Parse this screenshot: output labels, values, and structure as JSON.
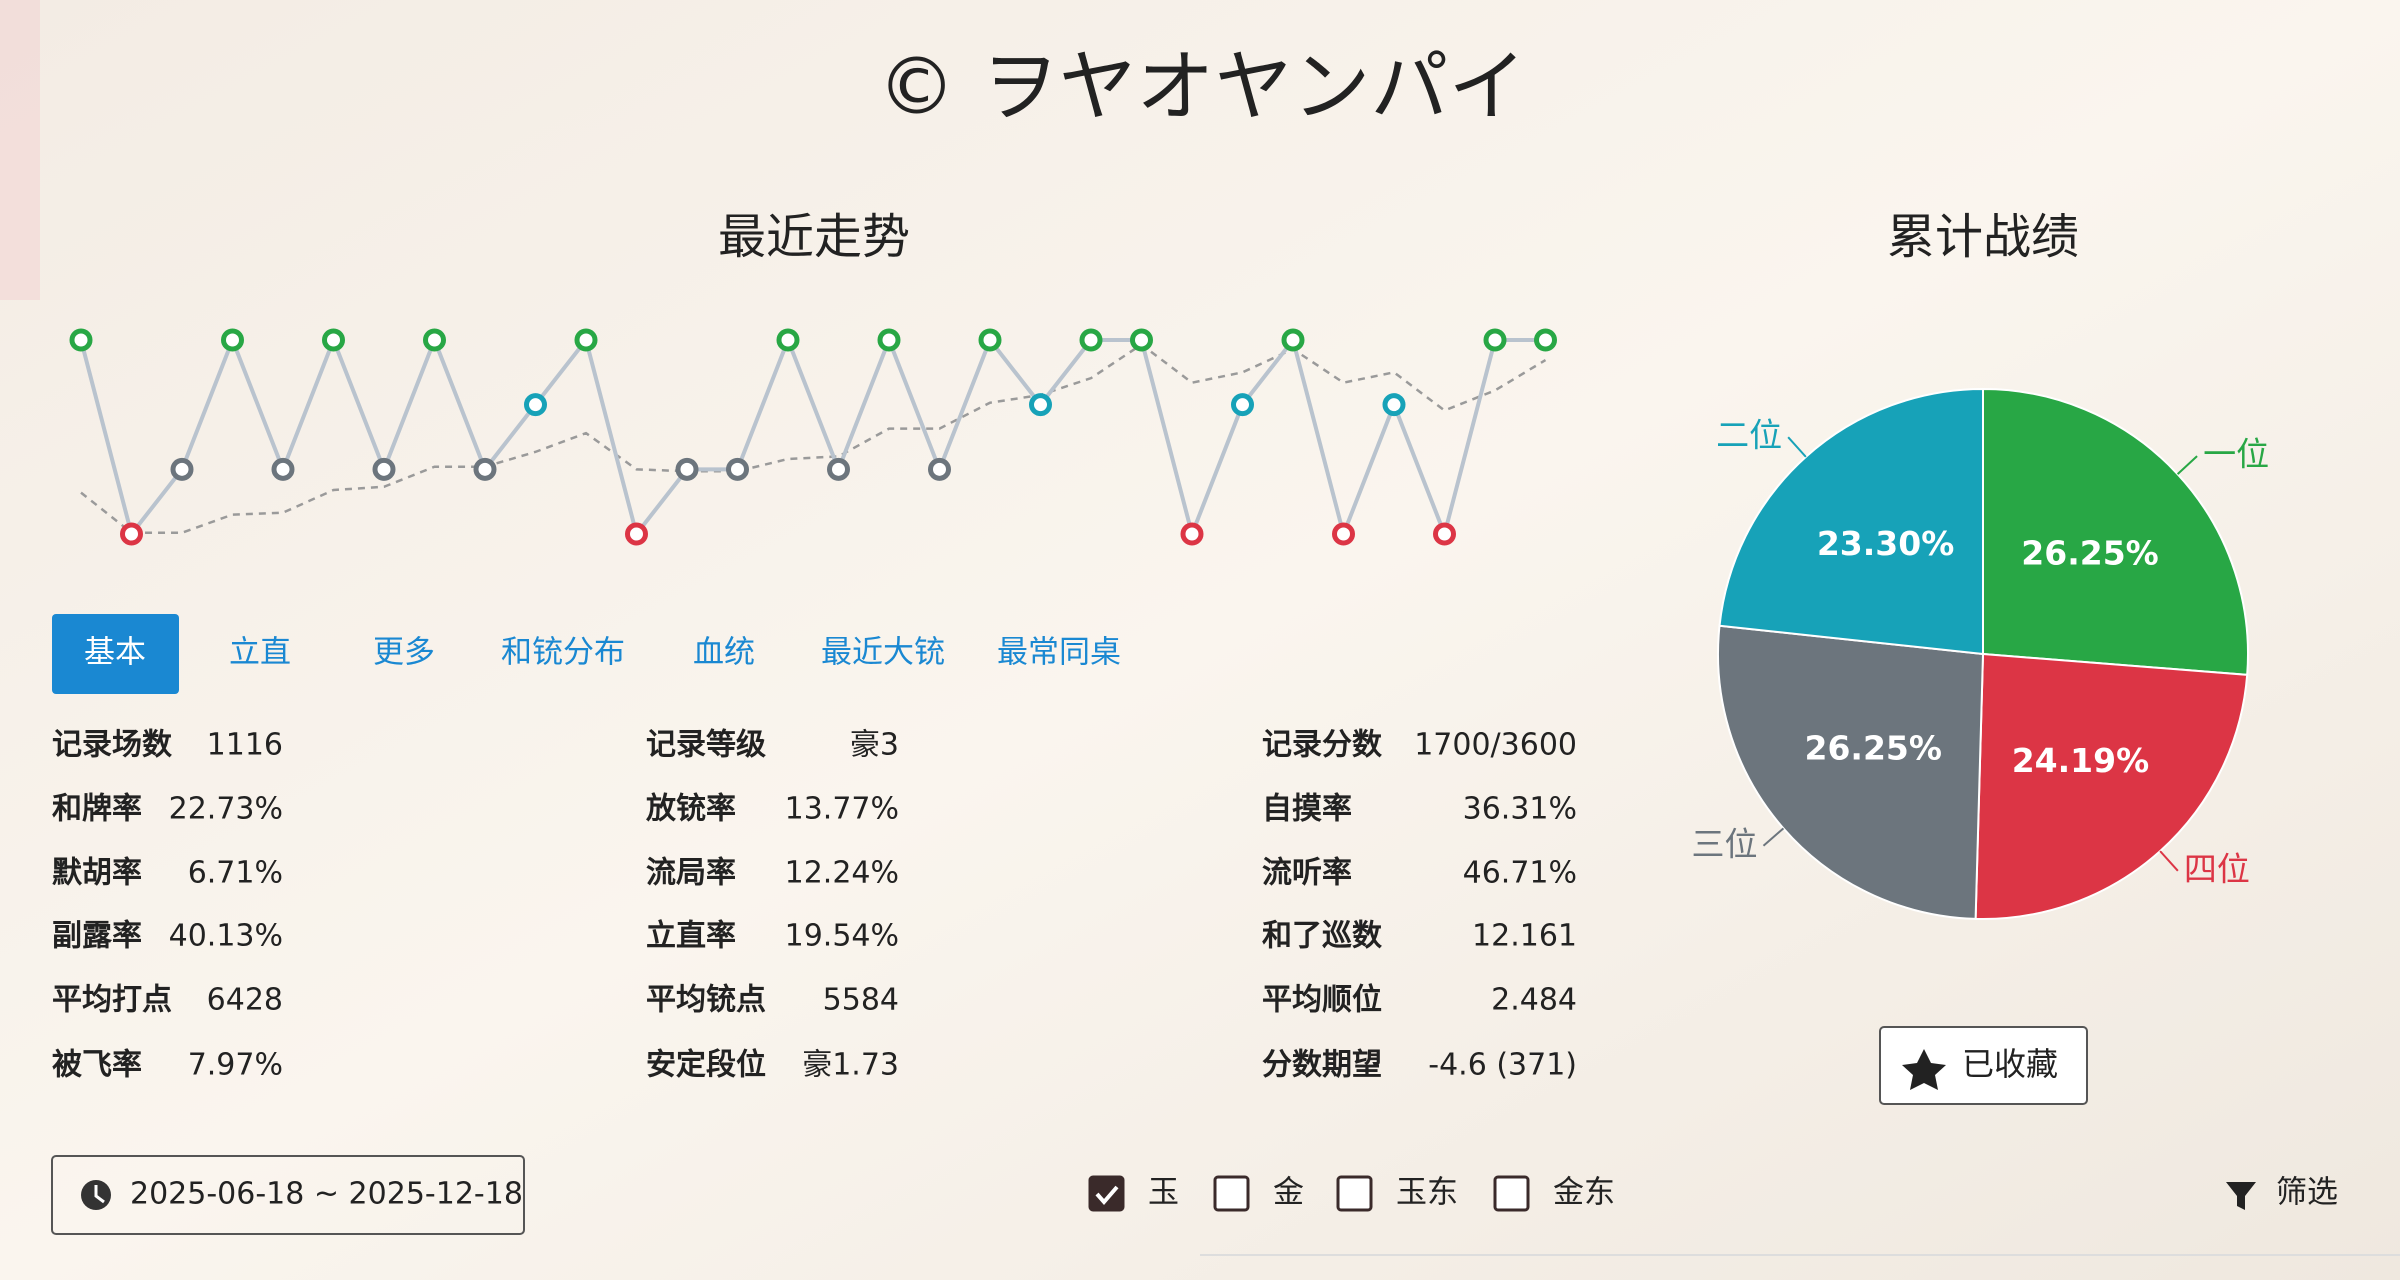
{
  "header": {
    "title": "© ヲヤオヤンパイ"
  },
  "chart_data": [
    {
      "type": "line",
      "title": "最近走势",
      "ylim": [
        4,
        1
      ],
      "point_colors": [
        "#28a745",
        "#17a2b8",
        "#6c757d",
        "#dc3545"
      ],
      "series": [
        {
          "color": "#b9c3ce",
          "values": [
            1,
            4,
            3,
            1,
            3,
            1,
            3,
            1,
            3,
            2,
            1,
            4,
            3,
            3,
            1,
            3,
            1,
            3,
            1,
            2,
            1,
            1,
            4,
            2,
            1,
            4,
            2,
            4,
            1,
            1
          ]
        },
        {
          "color": "#9a9a9a",
          "dashed": true,
          "values": [
            3.36,
            3.98,
            3.98,
            3.7,
            3.67,
            3.32,
            3.27,
            2.96,
            2.96,
            2.73,
            2.44,
            3.0,
            3.03,
            3.03,
            2.84,
            2.8,
            2.37,
            2.37,
            1.97,
            1.85,
            1.59,
            1.07,
            1.66,
            1.5,
            1.14,
            1.66,
            1.5,
            2.09,
            1.78,
            1.31
          ]
        }
      ]
    },
    {
      "type": "pie",
      "title": "累计战绩",
      "categories": [
        "一位",
        "四位",
        "三位",
        "二位"
      ],
      "values": [
        26.25,
        24.19,
        26.25,
        23.3
      ],
      "value_labels": [
        "26.25%",
        "24.19%",
        "26.25%",
        "23.30%"
      ],
      "colors": [
        "#28a745",
        "#dc3545",
        "#6c757d",
        "#17a2b8"
      ]
    }
  ],
  "tabs": {
    "items": [
      "基本",
      "立直",
      "更多",
      "和铳分布",
      "血统",
      "最近大铳",
      "最常同桌"
    ],
    "active": 0
  },
  "stats": {
    "columns": [
      {
        "rows": [
          [
            "记录场数",
            "1116"
          ],
          [
            "和牌率",
            "22.73%"
          ],
          [
            "默胡率",
            "6.71%"
          ],
          [
            "副露率",
            "40.13%"
          ],
          [
            "平均打点",
            "6428"
          ],
          [
            "被飞率",
            "7.97%"
          ]
        ]
      },
      {
        "rows": [
          [
            "记录等级",
            "豪3"
          ],
          [
            "放铳率",
            "13.77%"
          ],
          [
            "流局率",
            "12.24%"
          ],
          [
            "立直率",
            "19.54%"
          ],
          [
            "平均铳点",
            "5584"
          ],
          [
            "安定段位",
            "豪1.73"
          ]
        ]
      },
      {
        "rows": [
          [
            "记录分数",
            "1700/3600"
          ],
          [
            "自摸率",
            "36.31%"
          ],
          [
            "流听率",
            "46.71%"
          ],
          [
            "和了巡数",
            "12.161"
          ],
          [
            "平均顺位",
            "2.484"
          ],
          [
            "分数期望",
            "-4.6 (371)"
          ]
        ]
      }
    ]
  },
  "favorite": "已收藏",
  "date_range": "2025-06-18 ~ 2025-12-18",
  "checkboxes": [
    {
      "label": "玉",
      "checked": true
    },
    {
      "label": "金",
      "checked": false
    },
    {
      "label": "玉东",
      "checked": false
    },
    {
      "label": "金东",
      "checked": false
    }
  ],
  "filter_label": "筛选"
}
